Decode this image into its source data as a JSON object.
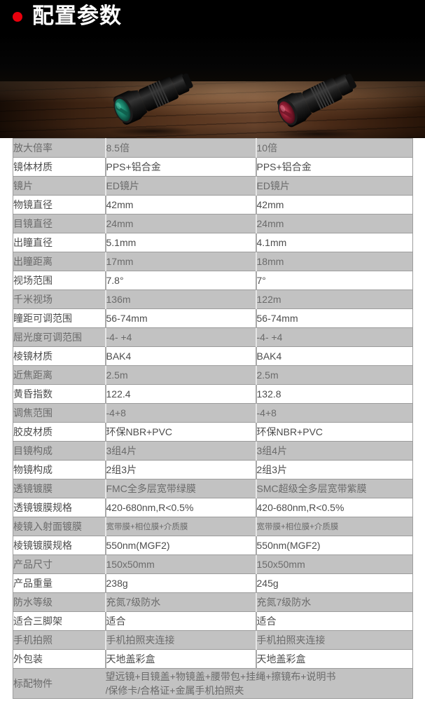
{
  "header": {
    "title": "配置参数",
    "bullet_color": "#e8000d",
    "background": "#000000"
  },
  "photo": {
    "left_monocular_lens_color": "#1d8a72",
    "right_monocular_lens_color": "#a11b33",
    "table_wood_color": "#5a3720",
    "backdrop_color": "#000000"
  },
  "table": {
    "rows": [
      {
        "label": "放大倍率",
        "values": [
          "8.5倍",
          "10倍"
        ]
      },
      {
        "label": "镜体材质",
        "values": [
          "PPS+铝合金",
          "PPS+铝合金"
        ]
      },
      {
        "label": "镜片",
        "values": [
          "ED镜片",
          "ED镜片"
        ]
      },
      {
        "label": "物镜直径",
        "values": [
          "42mm",
          "42mm"
        ]
      },
      {
        "label": "目镜直径",
        "values": [
          "24mm",
          "24mm"
        ]
      },
      {
        "label": "出瞳直径",
        "values": [
          "5.1mm",
          "4.1mm"
        ]
      },
      {
        "label": "出瞳距离",
        "values": [
          "17mm",
          "18mm"
        ]
      },
      {
        "label": "视场范围",
        "values": [
          "7.8°",
          "7°"
        ]
      },
      {
        "label": "千米视场",
        "values": [
          "136m",
          "122m"
        ]
      },
      {
        "label": "瞳距可调范围",
        "values": [
          "56-74mm",
          "56-74mm"
        ]
      },
      {
        "label": "屈光度可调范围",
        "values": [
          "-4- +4",
          "-4- +4"
        ]
      },
      {
        "label": "棱镜材质",
        "values": [
          "BAK4",
          "BAK4"
        ]
      },
      {
        "label": "近焦距离",
        "values": [
          "2.5m",
          "2.5m"
        ]
      },
      {
        "label": "黄昏指数",
        "values": [
          "122.4",
          "132.8"
        ]
      },
      {
        "label": "调焦范围",
        "values": [
          "-4+8",
          "-4+8"
        ]
      },
      {
        "label": "胶皮材质",
        "values": [
          "环保NBR+PVC",
          "环保NBR+PVC"
        ]
      },
      {
        "label": "目镜构成",
        "values": [
          "3组4片",
          "3组4片"
        ]
      },
      {
        "label": "物镜构成",
        "values": [
          "2组3片",
          "2组3片"
        ]
      },
      {
        "label": "透镜镀膜",
        "values": [
          "FMC全多层宽带绿膜",
          "SMC超级全多层宽带紫膜"
        ]
      },
      {
        "label": "透镜镀膜规格",
        "values": [
          "420-680nm,R<0.5%",
          "420-680nm,R<0.5%"
        ]
      },
      {
        "label": "棱镜入射面镀膜",
        "values": [
          "宽带膜+相位膜+介质膜",
          "宽带膜+相位膜+介质膜"
        ],
        "value_size": "small"
      },
      {
        "label": "棱镜镀膜规格",
        "values": [
          "550nm(MGF2)",
          "550nm(MGF2)"
        ]
      },
      {
        "label": "产品尺寸",
        "values": [
          "150x50mm",
          "150x50mm"
        ]
      },
      {
        "label": "产品重量",
        "values": [
          "238g",
          "245g"
        ]
      },
      {
        "label": "防水等级",
        "values": [
          "充氮7级防水",
          "充氮7级防水"
        ]
      },
      {
        "label": "适合三脚架",
        "values": [
          "适合",
          "适合"
        ]
      },
      {
        "label": "手机拍照",
        "values": [
          "手机拍照夹连接",
          "手机拍照夹连接"
        ]
      },
      {
        "label": "外包装",
        "values": [
          "天地盖彩盒",
          "天地盖彩盒"
        ]
      },
      {
        "label": "标配物件",
        "span_lines": [
          "望远镜+目镜盖+物镜盖+腰带包+挂绳+擦镜布+说明书",
          "/保修卡/合格证+金属手机拍照夹"
        ]
      }
    ]
  }
}
